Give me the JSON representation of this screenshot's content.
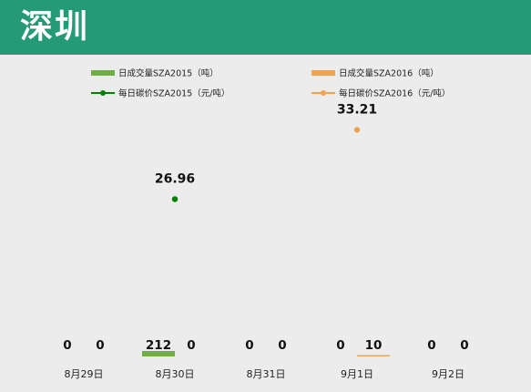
{
  "header": {
    "title": "深圳"
  },
  "chart_data": {
    "type": "bar",
    "categories": [
      "8月29日",
      "8月30日",
      "8月31日",
      "9月1日",
      "9月2日"
    ],
    "series": [
      {
        "name": "日成交量SZA2015（吨）",
        "kind": "bar",
        "color": "#70ad47",
        "values": [
          0,
          212,
          0,
          0,
          0
        ]
      },
      {
        "name": "日成交量SZA2016（吨）",
        "kind": "bar",
        "color": "#f0a44f",
        "values": [
          0,
          0,
          0,
          10,
          0
        ]
      },
      {
        "name": "每日碳价SZA2015（元/吨）",
        "kind": "line",
        "color": "#008000",
        "values": [
          null,
          26.96,
          null,
          null,
          null
        ]
      },
      {
        "name": "每日碳价SZA2016（元/吨）",
        "kind": "line",
        "color": "#f0a44f",
        "values": [
          null,
          null,
          null,
          33.21,
          null
        ]
      }
    ],
    "volume_labels": [
      [
        "0",
        "0"
      ],
      [
        "212",
        "0"
      ],
      [
        "0",
        "0"
      ],
      [
        "0",
        "10"
      ],
      [
        "0",
        "0"
      ]
    ],
    "price_labels": [
      "",
      "26.96",
      "",
      "33.21",
      ""
    ],
    "legend_position": "top",
    "grid": false,
    "price_ylim": [
      0,
      40
    ],
    "volume_ylim": [
      0,
      5000
    ]
  }
}
